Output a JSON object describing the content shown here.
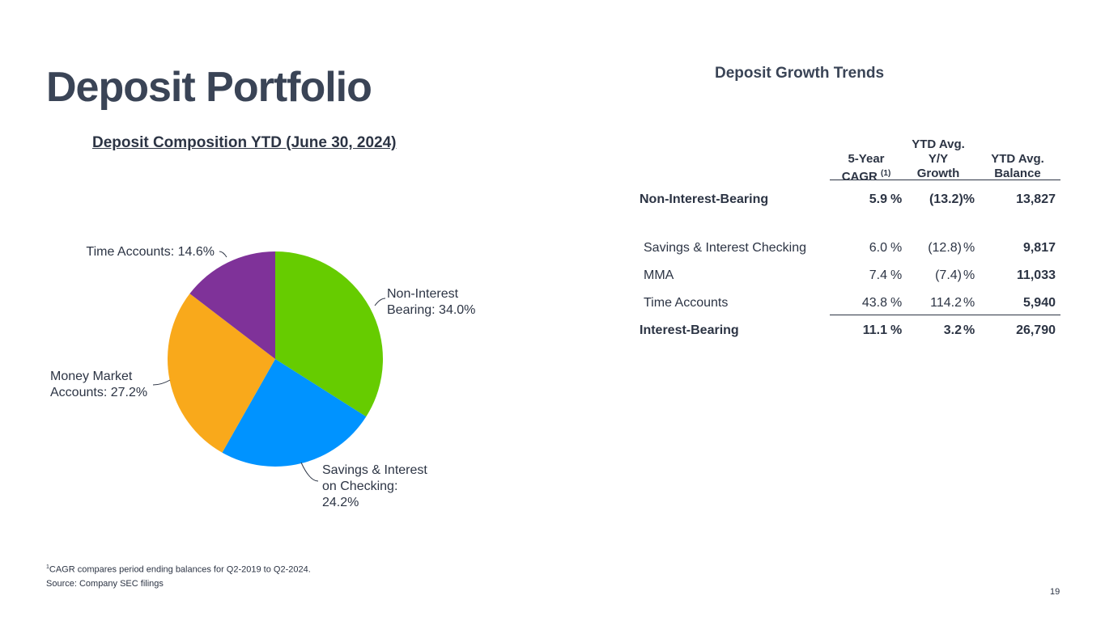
{
  "slide": {
    "title": "Deposit Portfolio",
    "page_number": "19"
  },
  "chart_data": {
    "type": "pie",
    "title": "Deposit Composition YTD (June 30, 2024)",
    "slices": [
      {
        "label": "Non-Interest Bearing",
        "value": 34.0,
        "color": "#66cc00",
        "label_lines": [
          "Non-Interest",
          "Bearing: 34.0%"
        ]
      },
      {
        "label": "Savings & Interest on Checking",
        "value": 24.2,
        "color": "#0093ff",
        "label_lines": [
          "Savings & Interest",
          "on Checking:",
          "24.2%"
        ]
      },
      {
        "label": "Money Market Accounts",
        "value": 27.2,
        "color": "#f9a91b",
        "label_lines": [
          "Money Market",
          "Accounts: 27.2%"
        ]
      },
      {
        "label": "Time Accounts",
        "value": 14.6,
        "color": "#7f3299",
        "label_lines": [
          "Time Accounts: 14.6%"
        ]
      }
    ]
  },
  "growth_table": {
    "title": "Deposit Growth Trends",
    "headers": {
      "cagr": "5-Year",
      "cagr_line2": "CAGR",
      "cagr_footnote": "(1)",
      "yoy_line1": "YTD Avg.",
      "yoy_line2": "Y/Y",
      "yoy_line3": "Growth",
      "balance_line1": "YTD Avg.",
      "balance_line2": "Balance"
    },
    "rows": [
      {
        "label": "Non-Interest-Bearing",
        "cagr": "5.9",
        "yoy": "(13.2)%",
        "balance": "13,827"
      },
      {
        "label": "Savings & Interest Checking",
        "cagr": "6.0",
        "yoy": "(12.8)",
        "balance": "9,817"
      },
      {
        "label": "MMA",
        "cagr": "7.4",
        "yoy": "(7.4)",
        "balance": "11,033"
      },
      {
        "label": "Time Accounts",
        "cagr": "43.8",
        "yoy": "114.2",
        "balance": "5,940"
      },
      {
        "label": "Interest-Bearing",
        "cagr": "11.1",
        "yoy": "3.2",
        "balance": "26,790"
      }
    ],
    "percent_sign": "%"
  },
  "footnotes": {
    "note1_marker": "1",
    "note1": "CAGR compares period ending balances for Q2-2019 to Q2-2024.",
    "source": "Source: Company SEC filings"
  }
}
